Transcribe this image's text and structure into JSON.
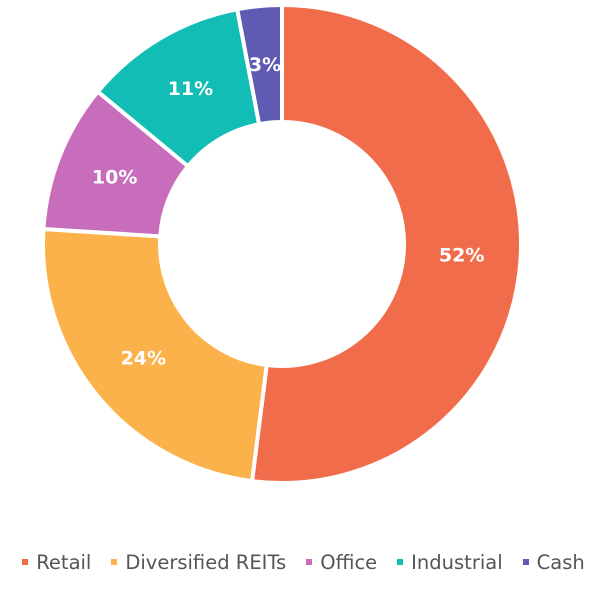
{
  "chart_data": {
    "type": "pie",
    "variant": "donut",
    "categories": [
      "Retail",
      "Diversified REITs",
      "Office",
      "Industrial",
      "Cash"
    ],
    "values": [
      52,
      24,
      10,
      11,
      3
    ],
    "labels": [
      "52%",
      "24%",
      "10%",
      "11%",
      "3%"
    ],
    "colors": [
      "#F06C4A",
      "#FBB24B",
      "#C76DBC",
      "#12BDB6",
      "#5F5BB3"
    ],
    "start": "12 o'clock",
    "direction": "clockwise",
    "legend_position": "bottom"
  }
}
